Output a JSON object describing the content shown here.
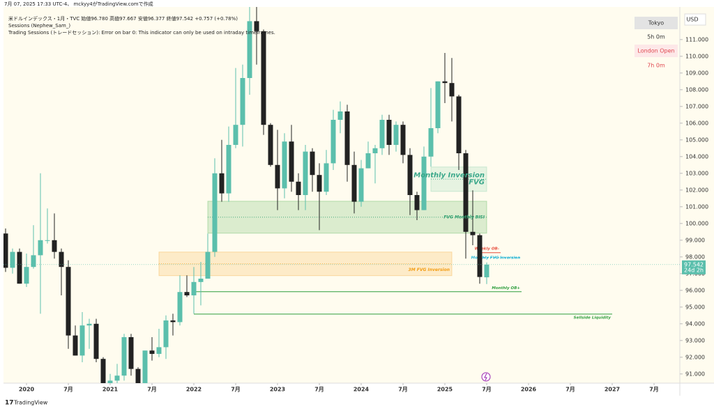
{
  "header": {
    "created": "7月 07, 2025 17:33 UTC-4、 mckyy4がTradingView.comで作成",
    "symbol_line": "米ドルインデックス・1月・TVC  始値96.780  高値97.667  安値96.377  終値97.542  +0.757 (+0.78%)",
    "indicator_1": "Sessions (Nephew_Sam_)",
    "indicator_2": "Trading Sessions (トレードセッション): Error on bar 0: This indicator can only be used on intraday timeframes."
  },
  "sessions": {
    "s1": "Tokyo",
    "s1_time": "5h 0m",
    "s2": "London Open",
    "s2_time": "7h 0m"
  },
  "currency": "USD",
  "footer": "TradingView",
  "chart_data": {
    "type": "candlestick",
    "up_color": "#5bbfac",
    "down_color": "#222222",
    "x": [
      "2019-10",
      "2019-11",
      "2019-12",
      "2020-01",
      "2020-02",
      "2020-03",
      "2020-04",
      "2020-05",
      "2020-06",
      "2020-07",
      "2020-08",
      "2020-09",
      "2020-10",
      "2020-11",
      "2020-12",
      "2021-01",
      "2021-02",
      "2021-03",
      "2021-04",
      "2021-05",
      "2021-06",
      "2021-07",
      "2021-08",
      "2021-09",
      "2021-10",
      "2021-11",
      "2021-12",
      "2022-01",
      "2022-02",
      "2022-03",
      "2022-04",
      "2022-05",
      "2022-06",
      "2022-07",
      "2022-08",
      "2022-09",
      "2022-10",
      "2022-11",
      "2022-12",
      "2023-01",
      "2023-02",
      "2023-03",
      "2023-04",
      "2023-05",
      "2023-06",
      "2023-07",
      "2023-08",
      "2023-09",
      "2023-10",
      "2023-11",
      "2023-12",
      "2024-01",
      "2024-02",
      "2024-03",
      "2024-04",
      "2024-05",
      "2024-06",
      "2024-07",
      "2024-08",
      "2024-09",
      "2024-10",
      "2024-11",
      "2024-12",
      "2025-01",
      "2025-02",
      "2025-03",
      "2025-04",
      "2025-05",
      "2025-06",
      "2025-07"
    ],
    "open": [
      99.4,
      97.35,
      98.3,
      96.4,
      97.4,
      98.1,
      99.0,
      99.0,
      98.3,
      97.4,
      93.3,
      92.1,
      93.9,
      94.0,
      91.9,
      89.9,
      90.6,
      90.9,
      93.2,
      91.3,
      90.0,
      92.4,
      92.2,
      92.6,
      94.2,
      94.1,
      95.9,
      95.7,
      96.5,
      96.7,
      98.3,
      103.0,
      101.8,
      104.7,
      105.9,
      108.7,
      112.1,
      111.5,
      105.9,
      103.5,
      102.1,
      104.9,
      102.5,
      101.7,
      104.3,
      102.9,
      101.9,
      103.6,
      106.2,
      106.7,
      103.5,
      101.3,
      103.3,
      104.2,
      104.5,
      106.2,
      104.7,
      105.9,
      104.1,
      101.7,
      100.8,
      104.0,
      105.7,
      108.5,
      108.4,
      107.6,
      104.2,
      99.5,
      99.3,
      96.78
    ],
    "high": [
      99.7,
      98.5,
      98.5,
      98.2,
      99.9,
      103.0,
      100.9,
      100.6,
      98.5,
      97.8,
      93.9,
      94.7,
      94.3,
      94.3,
      92.0,
      91.0,
      91.6,
      93.4,
      93.4,
      91.4,
      92.4,
      93.2,
      93.7,
      94.5,
      94.6,
      96.9,
      96.9,
      97.4,
      97.7,
      99.4,
      103.9,
      105.0,
      105.8,
      109.3,
      109.5,
      114.8,
      113.9,
      111.6,
      106.0,
      105.6,
      105.4,
      105.9,
      103.0,
      104.7,
      104.5,
      103.6,
      104.4,
      106.8,
      107.3,
      107.1,
      104.3,
      103.8,
      104.9,
      104.7,
      106.5,
      106.5,
      106.1,
      106.1,
      104.5,
      101.9,
      104.6,
      108.1,
      108.5,
      110.2,
      109.9,
      107.7,
      104.4,
      101.98,
      99.4,
      97.667
    ],
    "low": [
      97.1,
      97.0,
      96.4,
      96.2,
      97.3,
      94.6,
      98.8,
      97.9,
      95.7,
      92.5,
      92.1,
      91.7,
      92.5,
      91.7,
      89.7,
      89.2,
      89.7,
      90.6,
      90.9,
      89.5,
      89.7,
      91.8,
      92.0,
      91.9,
      93.3,
      93.9,
      95.6,
      94.6,
      95.1,
      96.7,
      98.0,
      101.3,
      101.3,
      104.5,
      104.6,
      107.7,
      109.5,
      105.3,
      103.4,
      100.8,
      101.5,
      101.9,
      100.8,
      100.8,
      101.9,
      99.6,
      101.7,
      103.2,
      105.4,
      102.5,
      100.6,
      101.0,
      103.3,
      102.4,
      104.1,
      104.1,
      104.3,
      103.6,
      100.5,
      100.2,
      100.8,
      103.4,
      105.4,
      107.2,
      106.1,
      103.2,
      97.9,
      98.7,
      96.4,
      96.377
    ],
    "close": [
      97.35,
      98.3,
      96.4,
      97.4,
      98.1,
      99.0,
      99.0,
      98.3,
      97.4,
      93.3,
      92.1,
      93.9,
      94.0,
      91.9,
      89.9,
      90.6,
      90.9,
      93.2,
      91.3,
      90.0,
      92.4,
      92.2,
      92.6,
      94.2,
      94.1,
      95.9,
      95.7,
      96.5,
      96.7,
      98.3,
      103.0,
      101.8,
      104.7,
      105.9,
      108.7,
      112.1,
      111.5,
      105.9,
      103.5,
      102.1,
      104.9,
      102.5,
      101.7,
      104.3,
      102.9,
      101.9,
      103.6,
      106.2,
      106.7,
      103.5,
      101.3,
      103.3,
      104.2,
      104.5,
      106.2,
      104.7,
      105.9,
      104.1,
      101.7,
      100.8,
      104.0,
      105.7,
      108.5,
      108.4,
      107.6,
      104.2,
      99.5,
      99.3,
      96.8,
      97.542
    ],
    "ylim": [
      90.45,
      112.95
    ],
    "yticks": [
      {
        "value": 91,
        "label": "91.000"
      },
      {
        "value": 92,
        "label": "92.000"
      },
      {
        "value": 93,
        "label": "93.000"
      },
      {
        "value": 94,
        "label": "94.000"
      },
      {
        "value": 95,
        "label": "95.000"
      },
      {
        "value": 96,
        "label": "96.000"
      },
      {
        "value": 97,
        "label": "97.000"
      },
      {
        "value": 98,
        "label": "98.000"
      },
      {
        "value": 99,
        "label": "99.000"
      },
      {
        "value": 100,
        "label": "100.000"
      },
      {
        "value": 101,
        "label": "101.000"
      },
      {
        "value": 102,
        "label": "102.000"
      },
      {
        "value": 103,
        "label": "103.000"
      },
      {
        "value": 104,
        "label": "104.000"
      },
      {
        "value": 105,
        "label": "105.000"
      },
      {
        "value": 106,
        "label": "106.000"
      },
      {
        "value": 107,
        "label": "107.000"
      },
      {
        "value": 108,
        "label": "108.000"
      },
      {
        "value": 109,
        "label": "109.000"
      },
      {
        "value": 110,
        "label": "110.000"
      },
      {
        "value": 111,
        "label": "111.000"
      }
    ],
    "xticks": [
      {
        "value": "2020-01",
        "label": "2020"
      },
      {
        "value": "2020-07",
        "label": "7月"
      },
      {
        "value": "2021-01",
        "label": "2021"
      },
      {
        "value": "2021-07",
        "label": "7月"
      },
      {
        "value": "2022-01",
        "label": "2022"
      },
      {
        "value": "2022-07",
        "label": "7月"
      },
      {
        "value": "2023-01",
        "label": "2023"
      },
      {
        "value": "2023-07",
        "label": "7月"
      },
      {
        "value": "2024-01",
        "label": "2024"
      },
      {
        "value": "2024-07",
        "label": "7月"
      },
      {
        "value": "2025-01",
        "label": "2025"
      },
      {
        "value": "2025-07",
        "label": "7月"
      },
      {
        "value": "2026-01",
        "label": "2026"
      },
      {
        "value": "2026-07",
        "label": "7月"
      },
      {
        "value": "2027-01",
        "label": "2027"
      },
      {
        "value": "2027-07",
        "label": "7月"
      }
    ],
    "last_price": {
      "value": 97.542,
      "label": "97.542"
    },
    "countdown": "24d 2h",
    "zones": [
      {
        "label": [
          "FVG Monthly BISI"
        ],
        "top": 101.33,
        "bottom": 99.42,
        "start": "2022-03",
        "end": "2025-07",
        "color": "#5cb85c",
        "text_color": "#2e9e6e"
      },
      {
        "label": [
          "Monthly Inversion",
          "FVG"
        ],
        "top": 103.38,
        "bottom": 101.92,
        "start": "2024-11",
        "end": "2025-07",
        "color": "#8fd4b0",
        "text_color": "#3aa88a"
      },
      {
        "label": [
          "3M FVG Inversion"
        ],
        "top": 98.29,
        "bottom": 96.88,
        "start": "2021-08",
        "end": "2025-02",
        "color": "#f5b041",
        "text_color": "#f39c12"
      }
    ],
    "levels": [
      {
        "label": "Weekly OB-",
        "value": 98.25,
        "start": "2025-06",
        "end": "2025-09",
        "color": "#e74c3c"
      },
      {
        "label": "Monthly FVG Inversion",
        "value": 97.96,
        "start": "2025-06",
        "end": "2025-12",
        "color": "#29b6d6"
      },
      {
        "label": "Monthly OB+",
        "value": 95.92,
        "start": "2022-01",
        "end": "2025-12",
        "color": "#2e9e3e"
      },
      {
        "label": "Sellside Liquidity",
        "value": 94.58,
        "start": "2022-01",
        "end": "2027-01",
        "color": "#2e9e3e"
      }
    ]
  }
}
